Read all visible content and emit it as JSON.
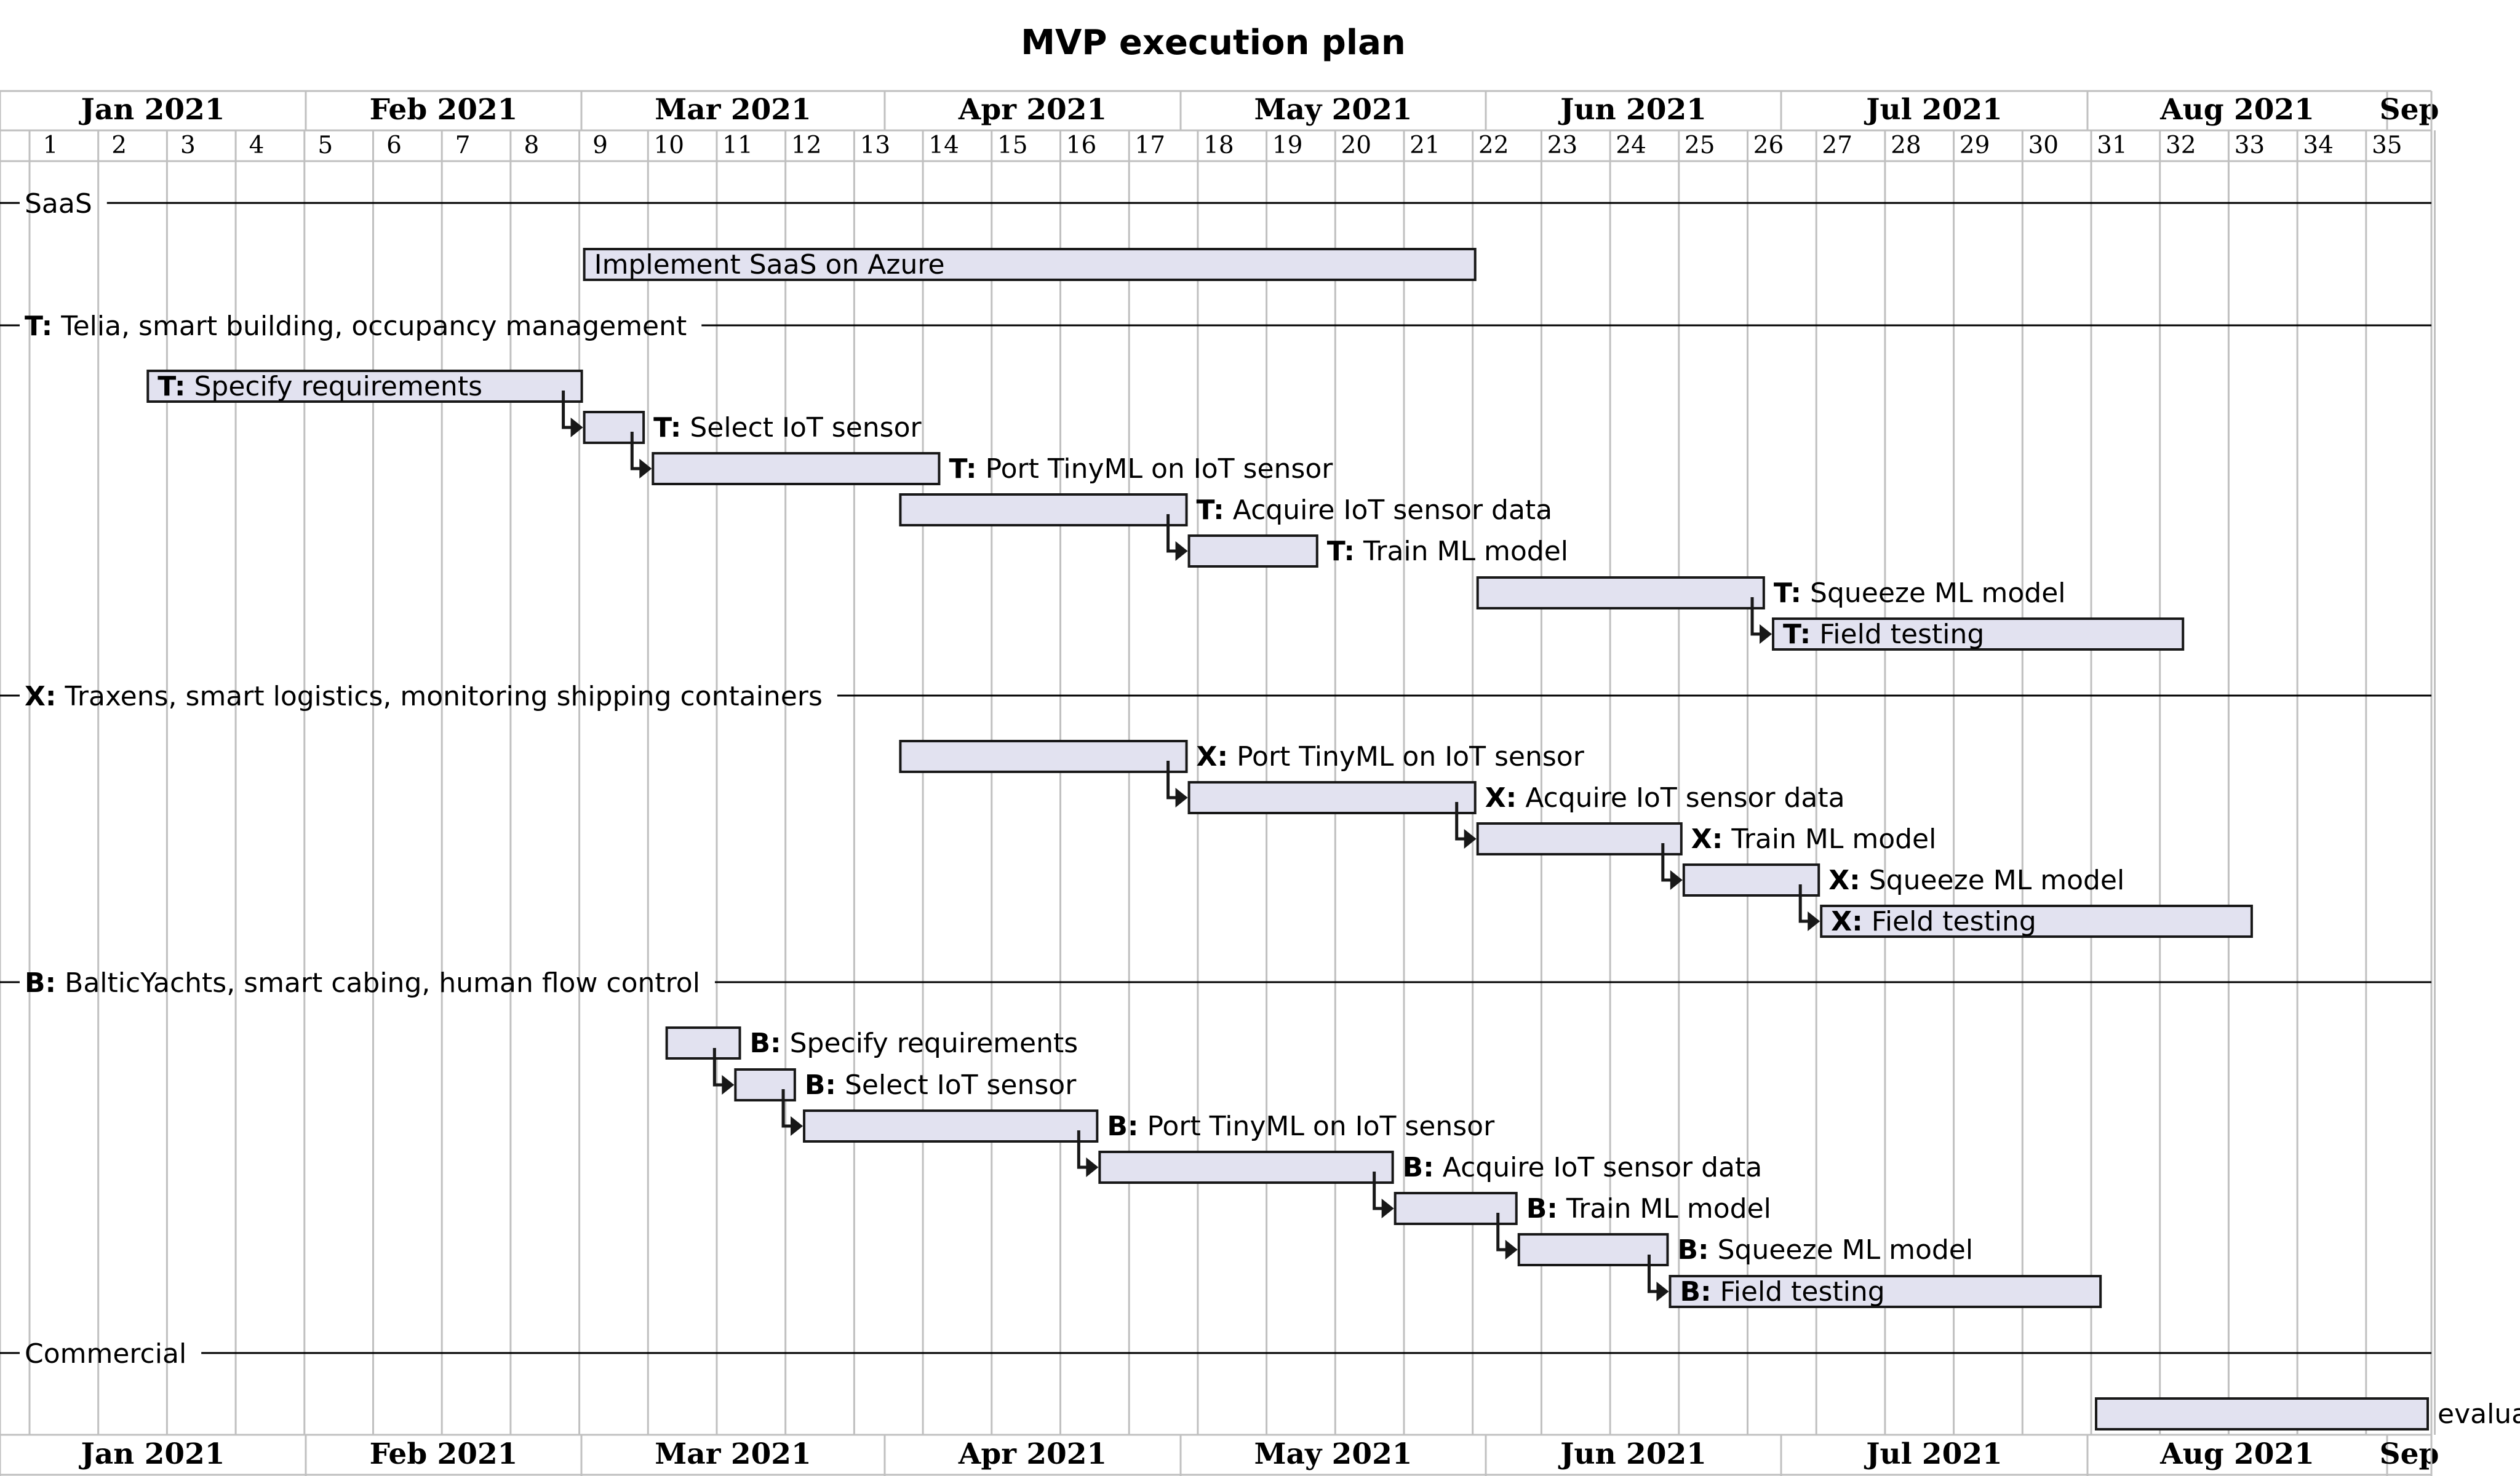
{
  "chart_data": {
    "type": "gantt",
    "title": "MVP execution plan",
    "months": [
      "Jan 2021",
      "Feb 2021",
      "Mar 2021",
      "Apr 2021",
      "May 2021",
      "Jun 2021",
      "Jul 2021",
      "Aug 2021",
      "Sep"
    ],
    "weeks": [
      "1",
      "2",
      "3",
      "4",
      "5",
      "6",
      "7",
      "8",
      "9",
      "10",
      "11",
      "12",
      "13",
      "14",
      "15",
      "16",
      "17",
      "18",
      "19",
      "20",
      "21",
      "22",
      "23",
      "24",
      "25",
      "26",
      "27",
      "28",
      "29",
      "30",
      "31",
      "32",
      "33",
      "34",
      "35"
    ],
    "separators": [
      {
        "prefix": "",
        "text": "SaaS"
      },
      {
        "prefix": "T:",
        "text": " Telia, smart building, occupancy management"
      },
      {
        "prefix": "X:",
        "text": " Traxens, smart logistics, monitoring shipping containers"
      },
      {
        "prefix": "B:",
        "text": " BalticYachts, smart cabing, human flow control"
      },
      {
        "prefix": "",
        "text": "Commercial"
      }
    ],
    "tasks": [
      {
        "prefix": "",
        "text": "Implement SaaS on Azure",
        "start_week": 9.0,
        "end_week": 22.0,
        "label_inside": true,
        "dependency": false
      },
      {
        "prefix": "T:",
        "text": " Specify requirements",
        "start_week": 2.65,
        "end_week": 9.0,
        "label_inside": true,
        "dependency": false
      },
      {
        "prefix": "T:",
        "text": " Select IoT sensor",
        "start_week": 9.0,
        "end_week": 9.9,
        "label_inside": false,
        "dependency": true
      },
      {
        "prefix": "T:",
        "text": " Port TinyML on IoT sensor",
        "start_week": 10.0,
        "end_week": 14.2,
        "label_inside": false,
        "dependency": true
      },
      {
        "prefix": "T:",
        "text": " Acquire IoT sensor data",
        "start_week": 13.6,
        "end_week": 17.8,
        "label_inside": false,
        "dependency": false
      },
      {
        "prefix": "T:",
        "text": " Train ML model",
        "start_week": 17.8,
        "end_week": 19.7,
        "label_inside": false,
        "dependency": true
      },
      {
        "prefix": "T:",
        "text": " Squeeze ML model",
        "start_week": 22.0,
        "end_week": 26.2,
        "label_inside": false,
        "dependency": false
      },
      {
        "prefix": "T:",
        "text": " Field testing",
        "start_week": 26.3,
        "end_week": 32.3,
        "label_inside": true,
        "dependency": true
      },
      {
        "prefix": "X:",
        "text": " Port TinyML on IoT sensor",
        "start_week": 13.6,
        "end_week": 17.8,
        "label_inside": false,
        "dependency": false
      },
      {
        "prefix": "X:",
        "text": " Acquire IoT sensor data",
        "start_week": 17.8,
        "end_week": 22.0,
        "label_inside": false,
        "dependency": true
      },
      {
        "prefix": "X:",
        "text": " Train ML model",
        "start_week": 22.0,
        "end_week": 25.0,
        "label_inside": false,
        "dependency": true
      },
      {
        "prefix": "X:",
        "text": " Squeeze ML model",
        "start_week": 25.0,
        "end_week": 27.0,
        "label_inside": false,
        "dependency": true
      },
      {
        "prefix": "X:",
        "text": " Field testing",
        "start_week": 27.0,
        "end_week": 33.3,
        "label_inside": true,
        "dependency": true
      },
      {
        "prefix": "B:",
        "text": " Specify requirements",
        "start_week": 10.2,
        "end_week": 11.3,
        "label_inside": false,
        "dependency": false
      },
      {
        "prefix": "B:",
        "text": " Select IoT sensor",
        "start_week": 11.2,
        "end_week": 12.1,
        "label_inside": false,
        "dependency": true
      },
      {
        "prefix": "B:",
        "text": " Port TinyML on IoT sensor",
        "start_week": 12.2,
        "end_week": 16.5,
        "label_inside": false,
        "dependency": true
      },
      {
        "prefix": "B:",
        "text": " Acquire IoT sensor data",
        "start_week": 16.5,
        "end_week": 20.8,
        "label_inside": false,
        "dependency": true
      },
      {
        "prefix": "B:",
        "text": " Train ML model",
        "start_week": 20.8,
        "end_week": 22.6,
        "label_inside": false,
        "dependency": true
      },
      {
        "prefix": "B:",
        "text": " Squeeze ML model",
        "start_week": 22.6,
        "end_week": 24.8,
        "label_inside": false,
        "dependency": true
      },
      {
        "prefix": "B:",
        "text": " Field testing",
        "start_week": 24.8,
        "end_week": 31.1,
        "label_inside": true,
        "dependency": true
      },
      {
        "prefix": "",
        "text": "evalua",
        "start_week": 31.0,
        "end_week": 35.9,
        "label_inside": false,
        "dependency": false
      }
    ]
  },
  "colors": {
    "bar_fill": "#e2e2f0",
    "bar_stroke": "#181818",
    "grid": "#c0c0c0",
    "line": "#000000"
  }
}
